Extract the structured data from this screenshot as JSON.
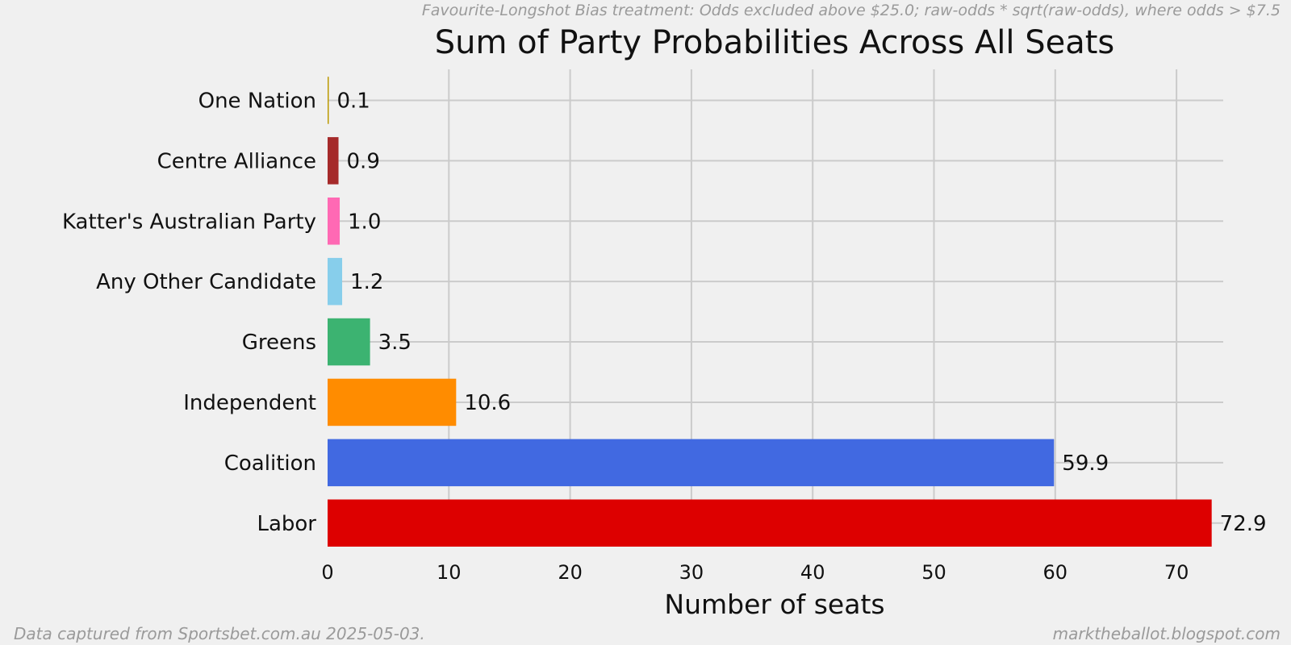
{
  "chart_data": {
    "type": "bar",
    "orientation": "horizontal",
    "title": "Sum of Party Probabilities Across All Seats",
    "subtitle": "Favourite-Longshot Bias treatment: Odds excluded above $25.0; raw-odds * sqrt(raw-odds), where odds > $7.5",
    "xlabel": "Number of seats",
    "ylabel": "",
    "xlim": [
      0,
      74.5
    ],
    "xticks": [
      0,
      10,
      20,
      30,
      40,
      50,
      60,
      70
    ],
    "grid": true,
    "categories": [
      "Labor",
      "Coalition",
      "Independent",
      "Greens",
      "Any Other Candidate",
      "Katter's Australian Party",
      "Centre Alliance",
      "One Nation"
    ],
    "values": [
      72.9,
      59.9,
      10.6,
      3.5,
      1.2,
      1.0,
      0.9,
      0.1
    ],
    "value_labels": [
      "72.9",
      "59.9",
      "10.6",
      "3.5",
      "1.2",
      "1.0",
      "0.9",
      "0.1"
    ],
    "colors": [
      "#dd0000",
      "#4169e1",
      "#ff8c00",
      "#3cb371",
      "#87ceeb",
      "#ff69b4",
      "#a52a2a",
      "#bb9900"
    ]
  },
  "footer": {
    "left": "Data captured from Sportsbet.com.au 2025-05-03.",
    "right": "marktheballot.blogspot.com"
  }
}
